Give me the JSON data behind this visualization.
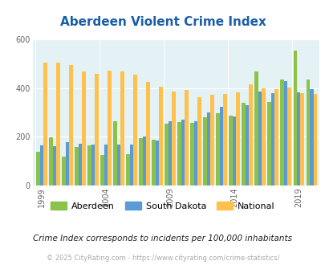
{
  "title": "Aberdeen Violent Crime Index",
  "years": [
    1999,
    2000,
    2001,
    2002,
    2003,
    2004,
    2005,
    2006,
    2007,
    2008,
    2009,
    2010,
    2011,
    2012,
    2013,
    2014,
    2015,
    2016,
    2017,
    2018,
    2019,
    2020
  ],
  "aberdeen": [
    140,
    197,
    120,
    160,
    165,
    127,
    263,
    130,
    195,
    190,
    255,
    260,
    258,
    280,
    296,
    286,
    340,
    470,
    345,
    435,
    557,
    435
  ],
  "south_dakota": [
    165,
    162,
    178,
    172,
    170,
    168,
    170,
    168,
    203,
    186,
    265,
    272,
    266,
    300,
    325,
    285,
    330,
    387,
    380,
    430,
    385,
    398
  ],
  "national": [
    507,
    507,
    497,
    470,
    460,
    472,
    469,
    455,
    428,
    405,
    388,
    392,
    365,
    375,
    378,
    382,
    416,
    400,
    396,
    404,
    379,
    378
  ],
  "bar_colors": {
    "aberdeen": "#8bc34a",
    "south_dakota": "#5b9bd5",
    "national": "#ffc04c"
  },
  "ylim": [
    0,
    600
  ],
  "yticks": [
    0,
    200,
    400,
    600
  ],
  "xtick_labels": [
    "1999",
    "2004",
    "2009",
    "2014",
    "2019"
  ],
  "xtick_positions": [
    0,
    5,
    10,
    15,
    20
  ],
  "background_color": "#e4f1f5",
  "legend_labels": [
    "Aberdeen",
    "South Dakota",
    "National"
  ],
  "subtitle": "Crime Index corresponds to incidents per 100,000 inhabitants",
  "footer": "© 2025 CityRating.com - https://www.cityrating.com/crime-statistics/",
  "title_color": "#1a5ea8",
  "subtitle_color": "#222222",
  "footer_color": "#aaaaaa",
  "fig_width": 4.06,
  "fig_height": 3.3,
  "dpi": 100
}
